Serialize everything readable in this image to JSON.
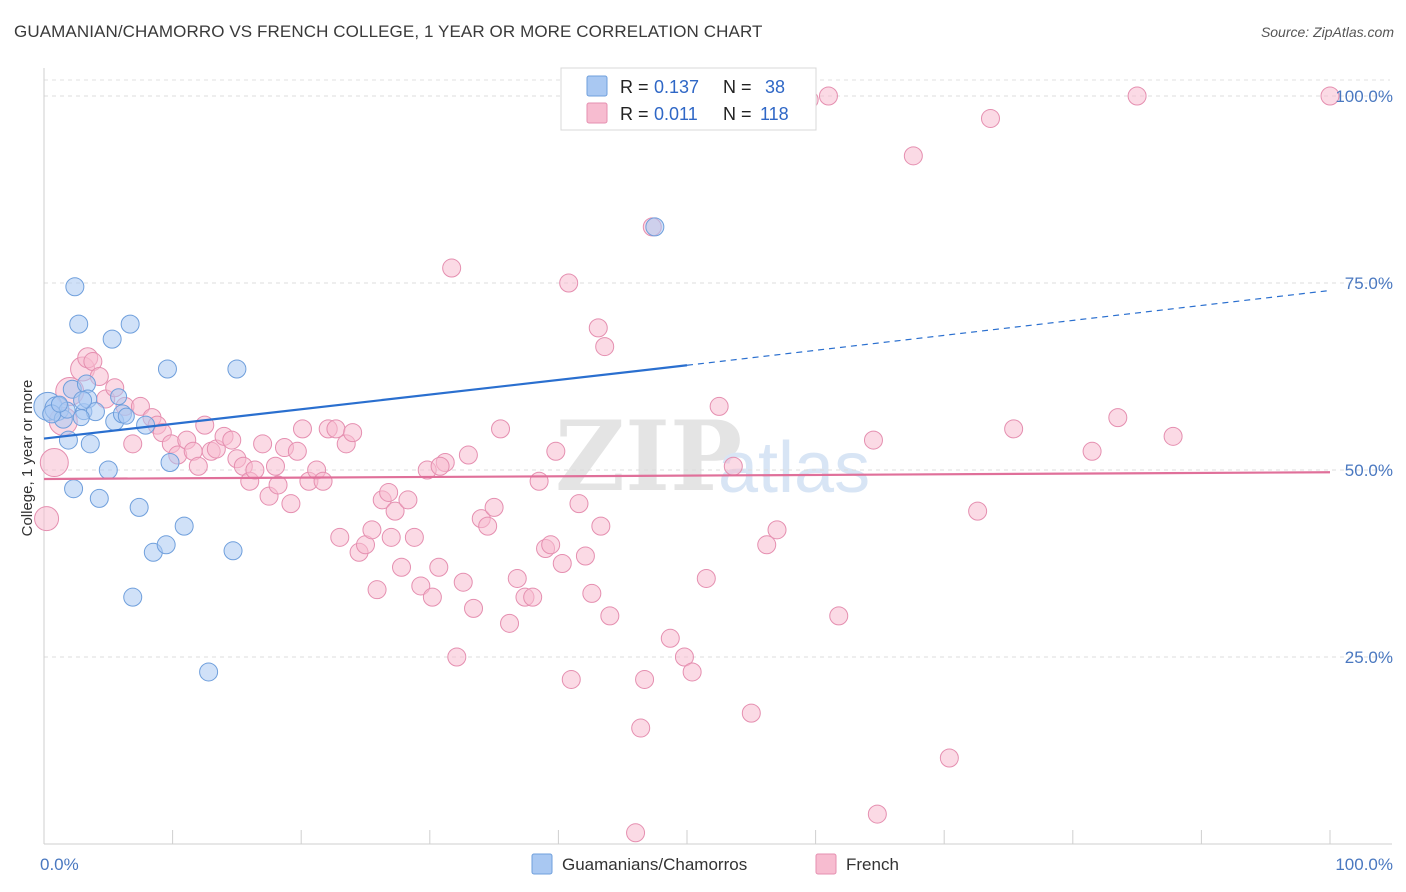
{
  "title": "GUAMANIAN/CHAMORRO VS FRENCH COLLEGE, 1 YEAR OR MORE CORRELATION CHART",
  "source": "Source: ZipAtlas.com",
  "watermark": {
    "zip": "ZIP",
    "atlas": "atlas"
  },
  "chart_data": {
    "type": "scatter",
    "xlabel": "",
    "ylabel": "College, 1 year or more",
    "xlim": [
      0,
      100
    ],
    "ylim": [
      0,
      102
    ],
    "x_tick_labels": [
      "0.0%",
      "100.0%"
    ],
    "y_ticks": [
      25,
      50,
      75,
      100
    ],
    "y_tick_labels": [
      "25.0%",
      "50.0%",
      "75.0%",
      "100.0%"
    ],
    "grid": "horizontal dashed",
    "legend_top": [
      {
        "r_label": "R =",
        "r_value": "0.137",
        "n_label": "N =",
        "n_value": "38"
      },
      {
        "r_label": "R =",
        "r_value": "0.011",
        "n_label": "N =",
        "n_value": "118"
      }
    ],
    "series": [
      {
        "name": "Guamanians/Chamorros",
        "color": "#a9c8f2",
        "stroke": "#6f9fdc",
        "trend": {
          "x0": 0,
          "y0": 54.2,
          "x1": 50,
          "y1": 64,
          "dash_to_x": 100,
          "dash_to_y": 74,
          "color": "#2a6fcf"
        },
        "points": [
          [
            0.3,
            58.5,
            14
          ],
          [
            1.0,
            58.2,
            12
          ],
          [
            1.5,
            56.8,
            9
          ],
          [
            1.8,
            58.0,
            8
          ],
          [
            1.9,
            54.0,
            9
          ],
          [
            2.2,
            60.8,
            9
          ],
          [
            2.3,
            47.5,
            9
          ],
          [
            2.4,
            74.5,
            9
          ],
          [
            2.7,
            69.5,
            9
          ],
          [
            3.1,
            57.8,
            8
          ],
          [
            3.3,
            61.5,
            9
          ],
          [
            3.4,
            59.5,
            9
          ],
          [
            3.6,
            53.5,
            9
          ],
          [
            4.0,
            57.8,
            9
          ],
          [
            4.3,
            46.2,
            9
          ],
          [
            5.0,
            50.0,
            9
          ],
          [
            5.3,
            67.5,
            9
          ],
          [
            5.5,
            56.5,
            9
          ],
          [
            6.1,
            57.5,
            9
          ],
          [
            6.4,
            57.2,
            8
          ],
          [
            6.7,
            69.5,
            9
          ],
          [
            6.9,
            33.0,
            9
          ],
          [
            7.4,
            45.0,
            9
          ],
          [
            7.9,
            56.0,
            9
          ],
          [
            8.5,
            39.0,
            9
          ],
          [
            9.5,
            40.0,
            9
          ],
          [
            9.6,
            63.5,
            9
          ],
          [
            9.8,
            51.0,
            9
          ],
          [
            10.9,
            42.5,
            9
          ],
          [
            12.8,
            23.0,
            9
          ],
          [
            14.7,
            39.2,
            9
          ],
          [
            15.0,
            63.5,
            9
          ],
          [
            47.5,
            82.5,
            9
          ],
          [
            3.0,
            59.3,
            9
          ],
          [
            0.6,
            57.5,
            9
          ],
          [
            1.2,
            58.8,
            8
          ],
          [
            5.8,
            59.8,
            8
          ],
          [
            2.9,
            57.0,
            8
          ]
        ]
      },
      {
        "name": "French",
        "color": "#f7bcd0",
        "stroke": "#e58fb0",
        "trend": {
          "x0": 0,
          "y0": 48.8,
          "x1": 100,
          "y1": 49.7,
          "color": "#e0709a"
        },
        "points": [
          [
            0.2,
            43.5,
            12
          ],
          [
            0.8,
            51.0,
            14
          ],
          [
            1.5,
            56.5,
            14
          ],
          [
            2.0,
            60.5,
            14
          ],
          [
            3.0,
            63.5,
            12
          ],
          [
            3.4,
            65.0,
            10
          ],
          [
            3.8,
            64.5,
            9
          ],
          [
            4.3,
            62.5,
            9
          ],
          [
            4.8,
            59.5,
            9
          ],
          [
            5.5,
            61.0,
            9
          ],
          [
            6.3,
            58.5,
            9
          ],
          [
            6.9,
            53.5,
            9
          ],
          [
            7.5,
            58.5,
            9
          ],
          [
            8.4,
            57.0,
            9
          ],
          [
            8.8,
            56.0,
            9
          ],
          [
            9.2,
            55.0,
            9
          ],
          [
            9.9,
            53.5,
            9
          ],
          [
            10.4,
            52.0,
            9
          ],
          [
            11.1,
            54.0,
            9
          ],
          [
            11.6,
            52.5,
            9
          ],
          [
            12.5,
            56.0,
            9
          ],
          [
            13.0,
            52.5,
            9
          ],
          [
            13.4,
            52.8,
            9
          ],
          [
            14.0,
            54.5,
            9
          ],
          [
            14.6,
            54.0,
            9
          ],
          [
            15.0,
            51.5,
            9
          ],
          [
            15.5,
            50.5,
            9
          ],
          [
            16.0,
            48.5,
            9
          ],
          [
            16.4,
            50.0,
            9
          ],
          [
            17.0,
            53.5,
            9
          ],
          [
            17.5,
            46.5,
            9
          ],
          [
            18.2,
            48.0,
            9
          ],
          [
            18.7,
            53.0,
            9
          ],
          [
            19.2,
            45.5,
            9
          ],
          [
            19.7,
            52.5,
            9
          ],
          [
            20.1,
            55.5,
            9
          ],
          [
            20.6,
            48.5,
            9
          ],
          [
            21.2,
            50.0,
            9
          ],
          [
            21.7,
            48.5,
            9
          ],
          [
            22.1,
            55.5,
            9
          ],
          [
            22.7,
            55.5,
            9
          ],
          [
            23.0,
            41.0,
            9
          ],
          [
            23.5,
            53.5,
            9
          ],
          [
            24.0,
            55.0,
            9
          ],
          [
            24.5,
            39.0,
            9
          ],
          [
            25.0,
            40.0,
            9
          ],
          [
            25.5,
            42.0,
            9
          ],
          [
            25.9,
            34.0,
            9
          ],
          [
            26.3,
            46.0,
            9
          ],
          [
            26.8,
            47.0,
            9
          ],
          [
            27.3,
            44.5,
            9
          ],
          [
            27.8,
            37.0,
            9
          ],
          [
            28.3,
            46.0,
            9
          ],
          [
            28.8,
            41.0,
            9
          ],
          [
            29.3,
            34.5,
            9
          ],
          [
            29.8,
            50.0,
            9
          ],
          [
            30.2,
            33.0,
            9
          ],
          [
            30.7,
            37.0,
            9
          ],
          [
            31.2,
            51.0,
            9
          ],
          [
            31.7,
            77.0,
            9
          ],
          [
            32.1,
            25.0,
            9
          ],
          [
            32.6,
            35.0,
            9
          ],
          [
            33.0,
            52.0,
            9
          ],
          [
            33.4,
            31.5,
            9
          ],
          [
            34.0,
            43.5,
            9
          ],
          [
            34.5,
            42.5,
            9
          ],
          [
            35.0,
            45.0,
            9
          ],
          [
            35.5,
            55.5,
            9
          ],
          [
            36.2,
            29.5,
            9
          ],
          [
            36.8,
            35.5,
            9
          ],
          [
            37.4,
            33.0,
            9
          ],
          [
            38.0,
            33.0,
            9
          ],
          [
            38.5,
            48.5,
            9
          ],
          [
            39.0,
            39.5,
            9
          ],
          [
            39.4,
            40.0,
            9
          ],
          [
            39.8,
            52.5,
            9
          ],
          [
            40.3,
            37.5,
            9
          ],
          [
            40.8,
            75.0,
            9
          ],
          [
            41.0,
            22.0,
            9
          ],
          [
            41.6,
            45.5,
            9
          ],
          [
            42.1,
            38.5,
            9
          ],
          [
            42.6,
            33.5,
            9
          ],
          [
            43.1,
            69.0,
            9
          ],
          [
            43.3,
            42.5,
            9
          ],
          [
            43.6,
            66.5,
            9
          ],
          [
            44.0,
            30.5,
            9
          ],
          [
            46.0,
            1.5,
            9
          ],
          [
            46.4,
            15.5,
            9
          ],
          [
            46.7,
            22.0,
            9
          ],
          [
            47.3,
            82.5,
            9
          ],
          [
            48.7,
            27.5,
            9
          ],
          [
            49.8,
            25.0,
            9
          ],
          [
            50.4,
            23.0,
            9
          ],
          [
            51.5,
            35.5,
            9
          ],
          [
            52.5,
            58.5,
            9
          ],
          [
            53.6,
            50.5,
            9
          ],
          [
            55.0,
            17.5,
            9
          ],
          [
            56.2,
            40.0,
            9
          ],
          [
            57.0,
            42.0,
            9
          ],
          [
            61.0,
            100.0,
            9
          ],
          [
            61.8,
            30.5,
            9
          ],
          [
            64.5,
            54.0,
            9
          ],
          [
            64.8,
            4.0,
            9
          ],
          [
            67.6,
            92.0,
            9
          ],
          [
            70.4,
            11.5,
            9
          ],
          [
            72.6,
            44.5,
            9
          ],
          [
            73.6,
            97.0,
            9
          ],
          [
            75.4,
            55.5,
            9
          ],
          [
            81.5,
            52.5,
            9
          ],
          [
            83.5,
            57.0,
            9
          ],
          [
            85.0,
            100.0,
            9
          ],
          [
            87.8,
            54.5,
            9
          ],
          [
            100.0,
            100.0,
            9
          ],
          [
            59.5,
            99.5,
            9
          ],
          [
            12.0,
            50.5,
            9
          ],
          [
            18.0,
            50.5,
            9
          ],
          [
            27.0,
            41.0,
            9
          ],
          [
            30.8,
            50.5,
            9
          ]
        ]
      }
    ]
  }
}
